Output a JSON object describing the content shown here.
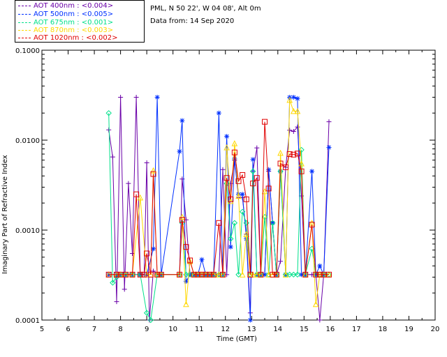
{
  "header": {
    "site": "PML, N 50 22', W 04 08', Alt 0m",
    "date_line": "Data from: 14 Sep 2020"
  },
  "legend": [
    {
      "label": "AOT  400nm : <0.004>",
      "color": "#6a00a8"
    },
    {
      "label": "AOT  500nm : <0.005>",
      "color": "#0030ff"
    },
    {
      "label": "AOT  675nm : <0.001>",
      "color": "#00e08a"
    },
    {
      "label": "AOT  870nm : <0.003>",
      "color": "#ffd800"
    },
    {
      "label": "AOT 1020nm : <0.002>",
      "color": "#e00000"
    }
  ],
  "chart_data": {
    "type": "line",
    "xlabel": "Time (GMT)",
    "ylabel": "Imaginary Part of Refractive Index",
    "xlim": [
      5,
      20
    ],
    "ylim": [
      0.0001,
      0.1
    ],
    "yscale": "log",
    "xticks": [
      5,
      6,
      7,
      8,
      9,
      10,
      11,
      12,
      13,
      14,
      15,
      16,
      17,
      18,
      19,
      20
    ],
    "xtick_labels": [
      "5",
      "6",
      "7",
      "8",
      "9",
      "10",
      "11",
      "12",
      "13",
      "14",
      "15",
      "16",
      "17",
      "18",
      "19",
      "20"
    ],
    "yticks": [
      0.0001,
      0.001,
      0.01,
      0.1
    ],
    "ytick_labels": [
      "0.0001",
      "0.0010",
      "0.0100",
      "0.1000"
    ],
    "grid": false,
    "legend_position": "top-left-outside",
    "series": [
      {
        "name": "AOT  400nm : <0.004>",
        "color": "#6a00a8",
        "marker": "plus",
        "x": [
          7.55,
          7.7,
          7.85,
          8.0,
          8.15,
          8.3,
          8.45,
          8.6,
          8.75,
          8.9,
          9.0,
          9.1,
          9.25,
          9.4,
          9.55,
          10.25,
          10.35,
          10.5,
          10.65,
          10.8,
          10.95,
          11.1,
          11.25,
          11.4,
          11.55,
          11.75,
          11.9,
          12.05,
          12.2,
          12.35,
          12.5,
          12.65,
          12.8,
          12.95,
          13.05,
          13.2,
          13.35,
          13.5,
          13.65,
          13.8,
          13.95,
          14.1,
          14.3,
          14.45,
          14.6,
          14.75,
          14.9,
          15.05,
          15.3,
          15.45,
          15.6,
          15.75,
          15.95
        ],
        "y": [
          0.013,
          0.0065,
          0.00016,
          0.03,
          0.00022,
          0.0033,
          0.00055,
          0.03,
          0.00032,
          0.00032,
          0.0056,
          0.0001,
          0.00035,
          0.00032,
          0.00032,
          0.00032,
          0.0037,
          0.0013,
          0.00032,
          0.00032,
          0.00032,
          0.00032,
          0.00032,
          0.00032,
          0.00032,
          0.00032,
          0.0047,
          0.00032,
          0.0033,
          0.006,
          0.0023,
          0.0023,
          0.0009,
          0.00012,
          0.0045,
          0.0082,
          0.00032,
          0.00032,
          0.0045,
          0.0012,
          0.00032,
          0.00045,
          0.005,
          0.0129,
          0.0125,
          0.014,
          0.0024,
          0.00032,
          0.00032,
          0.00032,
          0.0001,
          0.00032,
          0.016
        ]
      },
      {
        "name": "AOT  500nm : <0.005>",
        "color": "#0030ff",
        "marker": "asterisk",
        "x": [
          7.55,
          7.85,
          8.0,
          8.2,
          8.45,
          8.75,
          9.0,
          9.25,
          9.4,
          9.55,
          10.25,
          10.35,
          10.5,
          10.65,
          10.8,
          10.95,
          11.1,
          11.25,
          11.4,
          11.55,
          11.75,
          11.9,
          12.05,
          12.2,
          12.35,
          12.5,
          12.65,
          12.8,
          12.95,
          13.05,
          13.2,
          13.35,
          13.5,
          13.65,
          13.8,
          13.95,
          14.1,
          14.3,
          14.45,
          14.6,
          14.75,
          14.9,
          15.05,
          15.3,
          15.45,
          15.6,
          15.75,
          15.95
        ],
        "y": [
          0.00032,
          0.00032,
          0.00032,
          0.00032,
          0.00032,
          0.00032,
          0.00032,
          0.00062,
          0.03,
          0.00032,
          0.0075,
          0.0165,
          0.00027,
          0.00032,
          0.00032,
          0.00032,
          0.00047,
          0.00032,
          0.00032,
          0.00032,
          0.02,
          0.00032,
          0.011,
          0.00065,
          0.0062,
          0.0025,
          0.0025,
          0.0008,
          0.0001,
          0.0061,
          0.00032,
          0.00032,
          0.00032,
          0.0047,
          0.0012,
          0.00032,
          0.0045,
          0.00032,
          0.03,
          0.03,
          0.029,
          0.00032,
          0.00032,
          0.0045,
          0.00032,
          0.0004,
          0.00032,
          0.0083
        ]
      },
      {
        "name": "AOT  675nm : <0.001>",
        "color": "#00e08a",
        "marker": "diamond",
        "x": [
          7.55,
          7.7,
          7.85,
          8.0,
          8.2,
          8.45,
          8.75,
          9.0,
          9.15,
          9.4,
          9.55,
          10.25,
          10.35,
          10.5,
          10.65,
          10.8,
          10.95,
          11.1,
          11.25,
          11.4,
          11.55,
          11.75,
          11.9,
          12.05,
          12.2,
          12.35,
          12.5,
          12.65,
          12.8,
          12.95,
          13.05,
          13.2,
          13.35,
          13.5,
          13.65,
          13.8,
          13.95,
          14.1,
          14.3,
          14.45,
          14.6,
          14.75,
          14.9,
          15.05,
          15.3,
          15.45,
          15.6,
          15.75,
          15.95
        ],
        "y": [
          0.02,
          0.00026,
          0.0003,
          0.00032,
          0.00032,
          0.00032,
          0.00032,
          0.00012,
          0.0001,
          0.00032,
          0.00032,
          0.00032,
          0.0012,
          0.00032,
          0.00032,
          0.00032,
          0.00032,
          0.00032,
          0.00032,
          0.00032,
          0.00032,
          0.00032,
          0.00032,
          0.0033,
          0.0008,
          0.0012,
          0.00032,
          0.0016,
          0.0012,
          0.00032,
          0.0045,
          0.00032,
          0.00032,
          0.0014,
          0.00032,
          0.0012,
          0.00032,
          0.0045,
          0.00032,
          0.00032,
          0.00032,
          0.00032,
          0.0078,
          0.00032,
          0.00062,
          0.00032,
          0.00032,
          0.00032,
          0.00032
        ]
      },
      {
        "name": "AOT  870nm : <0.003>",
        "color": "#ffd800",
        "marker": "triangle",
        "x": [
          7.55,
          7.85,
          8.0,
          8.2,
          8.45,
          8.75,
          9.0,
          9.15,
          9.25,
          9.4,
          9.55,
          10.25,
          10.35,
          10.5,
          10.65,
          10.8,
          10.95,
          11.1,
          11.25,
          11.4,
          11.55,
          11.75,
          11.9,
          12.05,
          12.2,
          12.35,
          12.5,
          12.65,
          12.8,
          12.95,
          13.05,
          13.2,
          13.35,
          13.5,
          13.65,
          13.8,
          13.95,
          14.1,
          14.3,
          14.45,
          14.6,
          14.75,
          14.9,
          15.05,
          15.3,
          15.45,
          15.6,
          15.75,
          15.95
        ],
        "y": [
          0.00032,
          0.00032,
          0.00032,
          0.00032,
          0.00032,
          0.0023,
          0.00032,
          0.00032,
          0.0046,
          0.00032,
          0.00032,
          0.00032,
          0.0014,
          0.00015,
          0.00045,
          0.00032,
          0.00032,
          0.00032,
          0.00032,
          0.00032,
          0.00032,
          0.00032,
          0.00032,
          0.0083,
          0.0021,
          0.0092,
          0.0024,
          0.00032,
          0.0009,
          0.00032,
          0.00032,
          0.00032,
          0.00032,
          0.0027,
          0.00032,
          0.00032,
          0.00032,
          0.0072,
          0.00032,
          0.028,
          0.021,
          0.021,
          0.0055,
          0.00032,
          0.0012,
          0.00015,
          0.00032,
          0.00032,
          0.00032
        ]
      },
      {
        "name": "AOT 1020nm : <0.002>",
        "color": "#e00000",
        "marker": "square",
        "x": [
          7.55,
          7.85,
          8.0,
          8.2,
          8.45,
          8.6,
          8.75,
          8.9,
          9.0,
          9.15,
          9.25,
          9.4,
          9.55,
          10.25,
          10.35,
          10.5,
          10.65,
          10.8,
          10.95,
          11.1,
          11.25,
          11.4,
          11.55,
          11.75,
          11.9,
          12.05,
          12.2,
          12.35,
          12.5,
          12.65,
          12.8,
          12.95,
          13.05,
          13.2,
          13.35,
          13.5,
          13.65,
          13.8,
          13.95,
          14.1,
          14.3,
          14.45,
          14.6,
          14.75,
          14.9,
          15.05,
          15.3,
          15.45,
          15.6,
          15.75,
          15.95
        ],
        "y": [
          0.00032,
          0.00032,
          0.00032,
          0.00032,
          0.00032,
          0.0025,
          0.00032,
          0.00032,
          0.00055,
          0.00032,
          0.0042,
          0.00032,
          0.00032,
          0.00032,
          0.0013,
          0.00065,
          0.00046,
          0.00032,
          0.00032,
          0.00032,
          0.00032,
          0.00032,
          0.00032,
          0.0012,
          0.00032,
          0.0038,
          0.0022,
          0.0073,
          0.0035,
          0.0041,
          0.0022,
          0.00032,
          0.0033,
          0.0038,
          0.00032,
          0.016,
          0.0029,
          0.00032,
          0.00032,
          0.0055,
          0.005,
          0.007,
          0.0069,
          0.0071,
          0.0045,
          0.00032,
          0.00115,
          0.00032,
          0.00032,
          0.00032,
          0.00032
        ]
      }
    ]
  }
}
